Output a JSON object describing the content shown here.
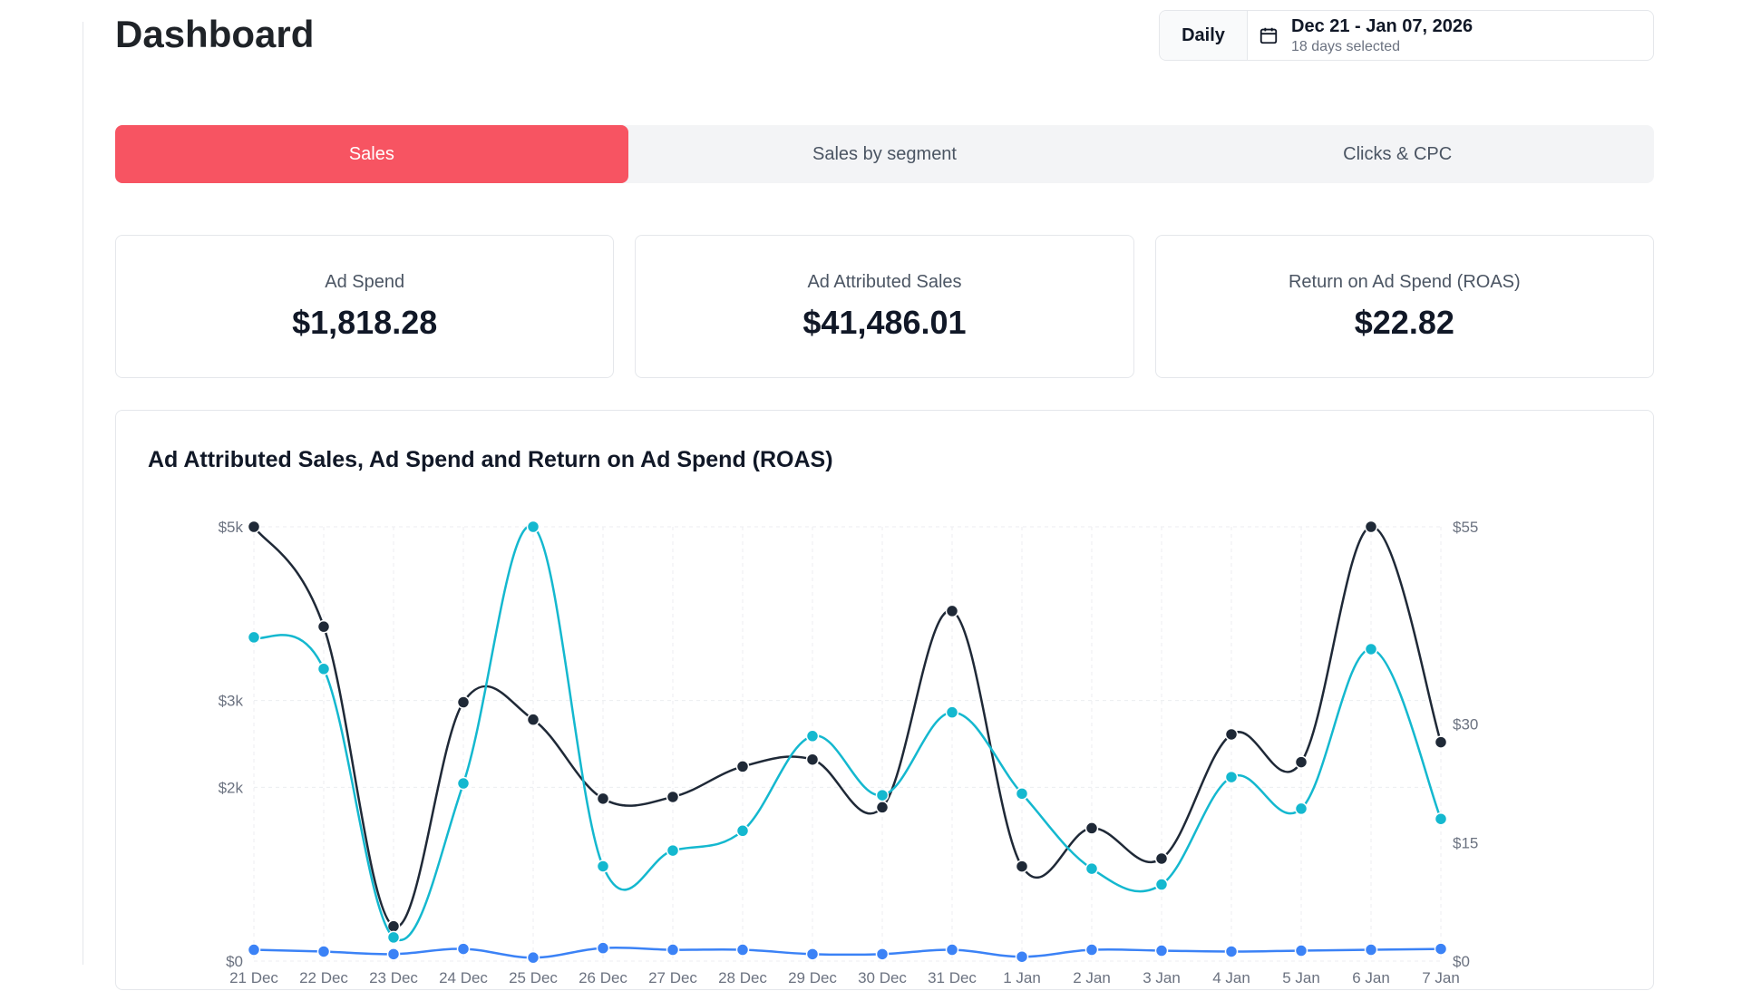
{
  "header": {
    "title": "Dashboard"
  },
  "date_control": {
    "granularity_label": "Daily",
    "range_label": "Dec 21 - Jan 07, 2026",
    "days_selected": "18 days selected",
    "icon": "calendar-icon"
  },
  "tabs": [
    {
      "label": "Sales",
      "active": true
    },
    {
      "label": "Sales by segment",
      "active": false
    },
    {
      "label": "Clicks & CPC",
      "active": false
    }
  ],
  "kpis": [
    {
      "label": "Ad Spend",
      "value": "$1,818.28"
    },
    {
      "label": "Ad Attributed Sales",
      "value": "$41,486.01"
    },
    {
      "label": "Return on Ad Spend (ROAS)",
      "value": "$22.82"
    }
  ],
  "colors": {
    "accent": "#f75462",
    "ad_attributed_sales_line": "#1f2937",
    "roas_line": "#14b8cf",
    "ad_spend_line": "#3b82f6"
  },
  "chart_data": {
    "type": "line",
    "title": "Ad Attributed Sales, Ad Spend and Return on Ad Spend (ROAS)",
    "categories": [
      "21 Dec",
      "22 Dec",
      "23 Dec",
      "24 Dec",
      "25 Dec",
      "26 Dec",
      "27 Dec",
      "28 Dec",
      "29 Dec",
      "30 Dec",
      "31 Dec",
      "1 Jan",
      "2 Jan",
      "3 Jan",
      "4 Jan",
      "5 Jan",
      "6 Jan",
      "7 Jan"
    ],
    "left_axis": {
      "ticks": [
        "$0",
        "$2k",
        "$3k",
        "$5k"
      ],
      "tick_values": [
        0,
        2000,
        3000,
        5000
      ],
      "range": [
        0,
        5000
      ]
    },
    "right_axis": {
      "ticks": [
        "$0",
        "$15",
        "$30",
        "$55"
      ],
      "tick_values": [
        0,
        15,
        30,
        55
      ],
      "range": [
        0,
        55
      ]
    },
    "grid": true,
    "series": [
      {
        "axis": "left",
        "color": "#1f2937",
        "values": [
          5000,
          3850,
          400,
          2980,
          2780,
          1870,
          1890,
          2240,
          2320,
          1770,
          4030,
          1090,
          1530,
          1180,
          2610,
          2290,
          5000,
          2520
        ]
      },
      {
        "axis": "right",
        "color": "#14b8cf",
        "values": [
          41,
          37,
          3,
          22.5,
          55,
          12,
          14,
          16.5,
          28.5,
          21,
          31.5,
          21.2,
          11.7,
          9.7,
          23.3,
          19.3,
          39.5,
          18
        ]
      },
      {
        "axis": "left",
        "color": "#3b82f6",
        "values": [
          130,
          110,
          80,
          140,
          40,
          150,
          130,
          130,
          80,
          80,
          130,
          50,
          130,
          120,
          110,
          120,
          130,
          140
        ]
      }
    ]
  }
}
